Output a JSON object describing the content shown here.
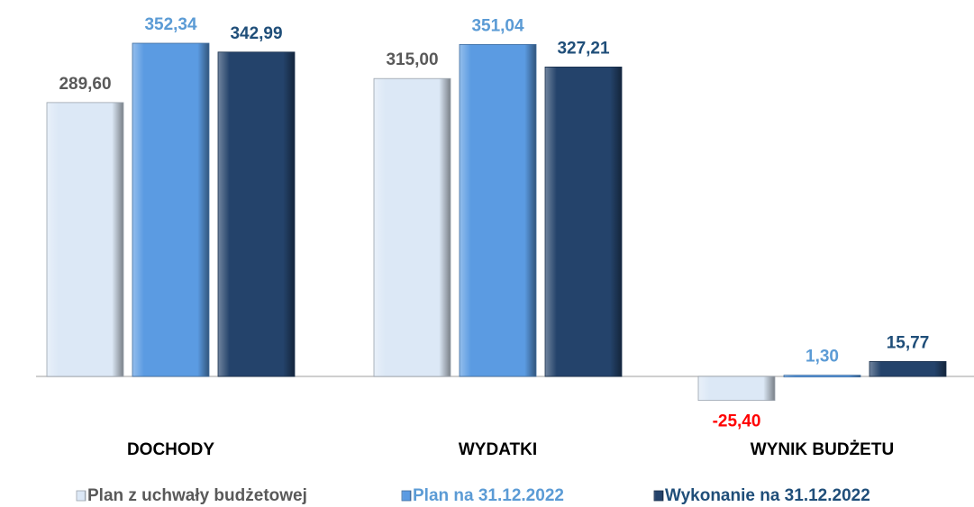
{
  "chart_data": {
    "type": "bar",
    "categories": [
      "DOCHODY",
      "WYDATKI",
      "WYNIK BUDŻETU"
    ],
    "series": [
      {
        "name": "Plan z uchwały budżetowej",
        "color": "#dce8f6",
        "label_color": "#595959",
        "values": [
          289.6,
          315.0,
          -25.4
        ],
        "value_labels": [
          "289,60",
          "315,00",
          "-25,40"
        ]
      },
      {
        "name": "Plan na 31.12.2022",
        "color": "#5b9be2",
        "label_color": "#5b9bd5",
        "values": [
          352.34,
          351.04,
          1.3
        ],
        "value_labels": [
          "352,34",
          "351,04",
          "1,30"
        ]
      },
      {
        "name": "Wykonanie na 31.12.2022",
        "color": "#24436b",
        "label_color": "#1f4e79",
        "values": [
          342.99,
          327.21,
          15.77
        ],
        "value_labels": [
          "342,99",
          "327,21",
          "15,77"
        ]
      }
    ],
    "negative_label_color": "#ff0000"
  }
}
